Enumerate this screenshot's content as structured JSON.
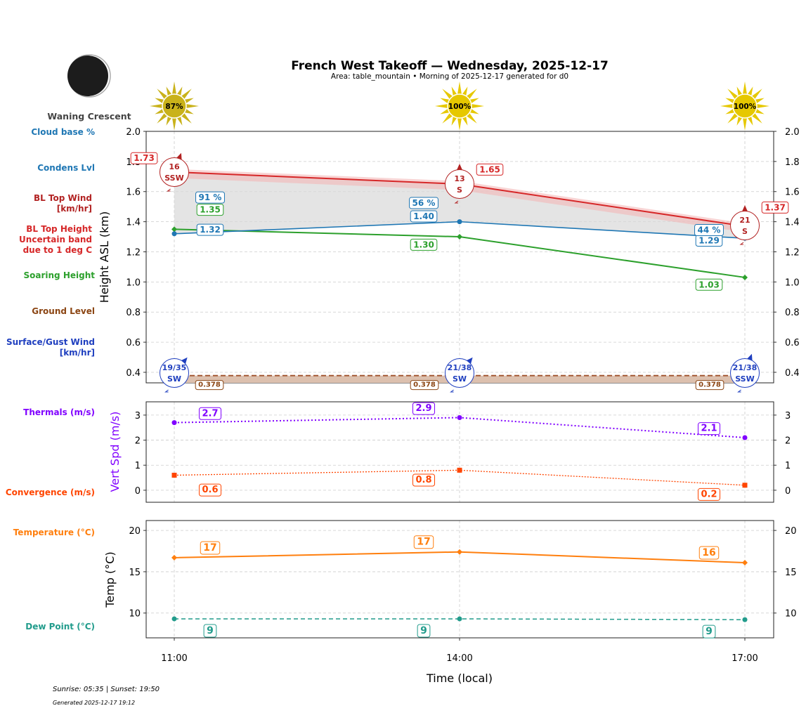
{
  "title": "French West Takeoff — Wednesday, 2025-12-17",
  "subtitle": "Area: table_mountain • Morning of 2025-12-17 generated for d0",
  "moon_phase": "Waning Crescent",
  "footer": {
    "sun_times": "Sunrise: 05:35 | Sunset: 19:50",
    "generated": "Generated 2025-12-17 19:12"
  },
  "colors": {
    "bl_top": "#d62728",
    "condens": "#1f77b4",
    "soaring": "#2ca02c",
    "ground": "#8b4513",
    "surface_wind": "#1f3fbf",
    "thermals": "#8000ff",
    "convergence": "#ff4500",
    "temperature": "#ff7f0e",
    "dew_point": "#229c8c",
    "sun": "#e6c800"
  },
  "left_labels": {
    "cloud_base": "Cloud base %",
    "condens": "Condens Lvl",
    "bl_wind_1": "BL Top Wind",
    "bl_wind_2": "[km/hr]",
    "bl_top_1": "BL Top Height",
    "bl_top_2": "Uncertain band",
    "bl_top_3": "due to 1 deg C",
    "soaring": "Soaring Height",
    "ground": "Ground Level",
    "surface_1": "Surface/Gust Wind",
    "surface_2": "[km/hr]",
    "thermals": "Thermals (m/s)",
    "convergence": "Convergence (m/s)",
    "temperature": "Temperature (°C)",
    "dew_point": "Dew Point (°C)"
  },
  "chart_data": [
    {
      "type": "line",
      "panel": "height",
      "ylabel": "Height ASL (km)",
      "ylim": [
        0.33,
        2.0
      ],
      "yticks": [
        "0.4",
        "0.6",
        "0.8",
        "1.0",
        "1.2",
        "1.4",
        "1.6",
        "1.8",
        "2.0"
      ],
      "grid": true,
      "x": [
        "11:00",
        "14:00",
        "17:00"
      ],
      "sun_percent": [
        "87%",
        "100%",
        "100%"
      ],
      "series": {
        "bl_top": {
          "values": [
            1.73,
            1.65,
            1.37
          ],
          "labels": [
            "1.73",
            "1.65",
            "1.37"
          ],
          "uncertainty": 0.02
        },
        "condens": {
          "values": [
            1.32,
            1.4,
            1.29
          ],
          "labels": [
            "1.32",
            "1.40",
            "1.29"
          ]
        },
        "cloud_base_pct": [
          "91 %",
          "56 %",
          "44 %"
        ],
        "soaring": {
          "values": [
            1.35,
            1.3,
            1.03
          ],
          "labels": [
            "1.35",
            "1.30",
            "1.03"
          ]
        },
        "ground": {
          "value": 0.378,
          "label": "0.378"
        },
        "bl_top_wind": [
          {
            "speed": "16",
            "dir": "SSW"
          },
          {
            "speed": "13",
            "dir": "S"
          },
          {
            "speed": "21",
            "dir": "S"
          }
        ],
        "surface_wind": [
          {
            "speed": "19/35",
            "dir": "SW"
          },
          {
            "speed": "21/38",
            "dir": "SW"
          },
          {
            "speed": "21/38",
            "dir": "SSW"
          }
        ]
      }
    },
    {
      "type": "line",
      "panel": "vertical_speed",
      "ylabel": "Vert Spd (m/s)",
      "ylim": [
        -0.48,
        3.53
      ],
      "yticks": [
        "0",
        "1",
        "2",
        "3"
      ],
      "grid": true,
      "series": {
        "thermals": {
          "values": [
            2.7,
            2.9,
            2.1
          ],
          "labels": [
            "2.7",
            "2.9",
            "2.1"
          ]
        },
        "convergence": {
          "values": [
            0.6,
            0.8,
            0.2
          ],
          "labels": [
            "0.6",
            "0.8",
            "0.2"
          ]
        }
      }
    },
    {
      "type": "line",
      "panel": "temperature",
      "ylabel": "Temp (°C)",
      "xlabel": "Time (local)",
      "ylim": [
        7.0,
        21.2
      ],
      "yticks": [
        "10",
        "15",
        "20"
      ],
      "grid": true,
      "series": {
        "temperature": {
          "values": [
            16.7,
            17.4,
            16.1
          ],
          "labels": [
            "17",
            "17",
            "16"
          ]
        },
        "dew_point": {
          "values": [
            9.3,
            9.3,
            9.2
          ],
          "labels": [
            "9",
            "9",
            "9"
          ]
        }
      }
    }
  ]
}
